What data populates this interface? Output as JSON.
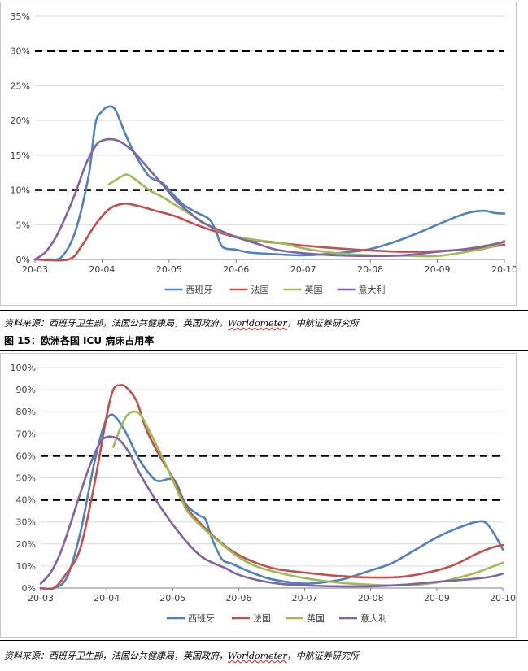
{
  "chart_data": [
    {
      "type": "line",
      "title": "",
      "xlabel": "",
      "ylabel": "",
      "ylim": [
        0,
        35
      ],
      "y_ticks": [
        "0%",
        "5%",
        "10%",
        "15%",
        "20%",
        "25%",
        "30%",
        "35%"
      ],
      "x_ticks": [
        "20-03",
        "20-04",
        "20-05",
        "20-06",
        "20-07",
        "20-08",
        "20-09",
        "20-10"
      ],
      "x_range": [
        0,
        7
      ],
      "reference_lines": [
        10,
        30
      ],
      "series": [
        {
          "name": "西班牙",
          "color": "#4f81bd",
          "points": [
            [
              0,
              0
            ],
            [
              0.2,
              0
            ],
            [
              0.4,
              0.4
            ],
            [
              0.6,
              4
            ],
            [
              0.8,
              12
            ],
            [
              0.9,
              19.5
            ],
            [
              1,
              21.3
            ],
            [
              1.1,
              22
            ],
            [
              1.2,
              21.5
            ],
            [
              1.35,
              18
            ],
            [
              1.5,
              15
            ],
            [
              1.7,
              12
            ],
            [
              1.9,
              11
            ],
            [
              2,
              10
            ],
            [
              2.2,
              8
            ],
            [
              2.4,
              6.8
            ],
            [
              2.6,
              5.8
            ],
            [
              2.7,
              4
            ],
            [
              2.8,
              1.8
            ],
            [
              3,
              1.4
            ],
            [
              3.2,
              1
            ],
            [
              3.5,
              0.8
            ],
            [
              4,
              0.6
            ],
            [
              4.5,
              0.9
            ],
            [
              5,
              1.5
            ],
            [
              5.5,
              3
            ],
            [
              6,
              5
            ],
            [
              6.3,
              6.2
            ],
            [
              6.5,
              6.8
            ],
            [
              6.7,
              7
            ],
            [
              6.85,
              6.7
            ],
            [
              7,
              6.6
            ]
          ]
        },
        {
          "name": "法国",
          "color": "#c0504d",
          "points": [
            [
              0,
              0
            ],
            [
              0.5,
              0
            ],
            [
              0.7,
              2
            ],
            [
              0.9,
              5
            ],
            [
              1.1,
              7.2
            ],
            [
              1.3,
              8
            ],
            [
              1.5,
              7.8
            ],
            [
              1.8,
              7
            ],
            [
              2.1,
              6.2
            ],
            [
              2.4,
              5
            ],
            [
              2.7,
              4
            ],
            [
              3,
              3.2
            ],
            [
              3.3,
              2.7
            ],
            [
              3.7,
              2.3
            ],
            [
              4,
              2
            ],
            [
              4.5,
              1.6
            ],
            [
              5,
              1.3
            ],
            [
              5.5,
              1.1
            ],
            [
              6,
              1.2
            ],
            [
              6.5,
              1.5
            ],
            [
              7,
              2.1
            ]
          ]
        },
        {
          "name": "英国",
          "color": "#9bbb59",
          "points": [
            [
              1.1,
              10.8
            ],
            [
              1.3,
              12
            ],
            [
              1.38,
              12.2
            ],
            [
              1.5,
              11.5
            ],
            [
              1.7,
              10
            ],
            [
              1.9,
              9
            ],
            [
              2.1,
              7.8
            ],
            [
              2.4,
              6
            ],
            [
              2.7,
              4.3
            ],
            [
              3,
              3.3
            ],
            [
              3.3,
              2.8
            ],
            [
              3.7,
              2.3
            ],
            [
              4,
              1.6
            ],
            [
              4.5,
              0.9
            ],
            [
              5,
              0.6
            ],
            [
              5.5,
              0.55
            ],
            [
              6,
              0.5
            ],
            [
              6.5,
              1.2
            ],
            [
              6.8,
              1.8
            ],
            [
              7,
              2.7
            ]
          ]
        },
        {
          "name": "意大利",
          "color": "#8064a2",
          "points": [
            [
              0,
              0
            ],
            [
              0.15,
              1
            ],
            [
              0.3,
              3
            ],
            [
              0.45,
              6
            ],
            [
              0.6,
              9.5
            ],
            [
              0.75,
              13.5
            ],
            [
              0.9,
              16.3
            ],
            [
              1,
              17.1
            ],
            [
              1.15,
              17.3
            ],
            [
              1.3,
              16.8
            ],
            [
              1.5,
              15.2
            ],
            [
              1.7,
              13
            ],
            [
              1.9,
              10.8
            ],
            [
              2.1,
              8.5
            ],
            [
              2.3,
              6.8
            ],
            [
              2.5,
              5.3
            ],
            [
              2.8,
              4
            ],
            [
              3,
              3.2
            ],
            [
              3.3,
              2.3
            ],
            [
              3.6,
              1.4
            ],
            [
              4,
              0.9
            ],
            [
              4.5,
              0.6
            ],
            [
              5,
              0.5
            ],
            [
              5.5,
              0.6
            ],
            [
              6,
              1.1
            ],
            [
              6.5,
              1.6
            ],
            [
              7,
              2.5
            ]
          ]
        }
      ]
    },
    {
      "type": "line",
      "title": "",
      "xlabel": "",
      "ylabel": "",
      "ylim": [
        0,
        100
      ],
      "y_ticks": [
        "0%",
        "10%",
        "20%",
        "30%",
        "40%",
        "50%",
        "60%",
        "70%",
        "80%",
        "90%",
        "100%"
      ],
      "x_ticks": [
        "20-03",
        "20-04",
        "20-05",
        "20-06",
        "20-07",
        "20-08",
        "20-09",
        "20-10"
      ],
      "x_range": [
        0,
        7
      ],
      "reference_lines": [
        40,
        60
      ],
      "series": [
        {
          "name": "西班牙",
          "color": "#4f81bd",
          "points": [
            [
              0,
              0
            ],
            [
              0.2,
              0
            ],
            [
              0.4,
              5
            ],
            [
              0.6,
              25
            ],
            [
              0.8,
              55
            ],
            [
              0.95,
              73
            ],
            [
              1.05,
              78.5
            ],
            [
              1.15,
              77
            ],
            [
              1.3,
              70
            ],
            [
              1.5,
              58
            ],
            [
              1.7,
              50
            ],
            [
              1.8,
              48.5
            ],
            [
              1.95,
              49.5
            ],
            [
              2.05,
              48
            ],
            [
              2.2,
              38
            ],
            [
              2.4,
              33
            ],
            [
              2.5,
              31
            ],
            [
              2.6,
              22
            ],
            [
              2.75,
              13
            ],
            [
              2.9,
              11
            ],
            [
              3.2,
              7
            ],
            [
              3.5,
              4
            ],
            [
              4,
              2
            ],
            [
              4.5,
              3.5
            ],
            [
              4.8,
              6
            ],
            [
              5,
              8
            ],
            [
              5.3,
              11
            ],
            [
              5.6,
              16
            ],
            [
              6,
              23
            ],
            [
              6.3,
              27
            ],
            [
              6.6,
              30
            ],
            [
              6.75,
              29.5
            ],
            [
              6.9,
              23
            ],
            [
              7,
              17.5
            ]
          ]
        },
        {
          "name": "法国",
          "color": "#c0504d",
          "points": [
            [
              0,
              0
            ],
            [
              0.2,
              0
            ],
            [
              0.4,
              7
            ],
            [
              0.6,
              18
            ],
            [
              0.8,
              45
            ],
            [
              1,
              78
            ],
            [
              1.1,
              90
            ],
            [
              1.2,
              92
            ],
            [
              1.3,
              91
            ],
            [
              1.45,
              85
            ],
            [
              1.6,
              72
            ],
            [
              1.8,
              60
            ],
            [
              2,
              50
            ],
            [
              2.2,
              37
            ],
            [
              2.4,
              30
            ],
            [
              2.6,
              24
            ],
            [
              2.8,
              19
            ],
            [
              3,
              15
            ],
            [
              3.3,
              11
            ],
            [
              3.6,
              8.5
            ],
            [
              4,
              7
            ],
            [
              4.5,
              5.5
            ],
            [
              5,
              4.8
            ],
            [
              5.5,
              5.2
            ],
            [
              6,
              8
            ],
            [
              6.3,
              11
            ],
            [
              6.6,
              15.5
            ],
            [
              6.85,
              18.5
            ],
            [
              7,
              19.5
            ]
          ]
        },
        {
          "name": "英国",
          "color": "#9bbb59",
          "points": [
            [
              1.1,
              64
            ],
            [
              1.2,
              72
            ],
            [
              1.3,
              78
            ],
            [
              1.4,
              80
            ],
            [
              1.5,
              79
            ],
            [
              1.6,
              74
            ],
            [
              1.8,
              62
            ],
            [
              2,
              49
            ],
            [
              2.2,
              36
            ],
            [
              2.4,
              29
            ],
            [
              2.7,
              21
            ],
            [
              3,
              14
            ],
            [
              3.3,
              9.5
            ],
            [
              3.6,
              7
            ],
            [
              4,
              4.5
            ],
            [
              4.5,
              2.5
            ],
            [
              5,
              1.5
            ],
            [
              5.5,
              1.2
            ],
            [
              6,
              2.5
            ],
            [
              6.3,
              4.5
            ],
            [
              6.6,
              7
            ],
            [
              7,
              11.5
            ]
          ]
        },
        {
          "name": "意大利",
          "color": "#8064a2",
          "points": [
            [
              0,
              2
            ],
            [
              0.15,
              7
            ],
            [
              0.3,
              16
            ],
            [
              0.45,
              29
            ],
            [
              0.6,
              43
            ],
            [
              0.75,
              56
            ],
            [
              0.9,
              66
            ],
            [
              1,
              68.5
            ],
            [
              1.1,
              68.5
            ],
            [
              1.2,
              67
            ],
            [
              1.35,
              61
            ],
            [
              1.5,
              52
            ],
            [
              1.7,
              42
            ],
            [
              1.9,
              33
            ],
            [
              2.1,
              25
            ],
            [
              2.3,
              18
            ],
            [
              2.5,
              13
            ],
            [
              2.8,
              9
            ],
            [
              3,
              6
            ],
            [
              3.3,
              3.5
            ],
            [
              3.6,
              2
            ],
            [
              4,
              1.2
            ],
            [
              4.5,
              0.8
            ],
            [
              5,
              0.8
            ],
            [
              5.5,
              1.5
            ],
            [
              6,
              2.8
            ],
            [
              6.5,
              4
            ],
            [
              6.8,
              5
            ],
            [
              7,
              6.5
            ]
          ]
        }
      ]
    }
  ],
  "sources": [
    {
      "prefix": "资料来源：西班牙卫生部，法国公共健康局，英国政府，",
      "wm": "Worldometer",
      "suffix": "，中航证券研究所"
    },
    {
      "prefix": "资料来源：西班牙卫生部，法国公共健康局，英国政府，",
      "wm": "Worldometer",
      "suffix": "，中航证券研究所"
    }
  ],
  "figure_title": "图 15：欧洲各国 ICU 病床占用率"
}
